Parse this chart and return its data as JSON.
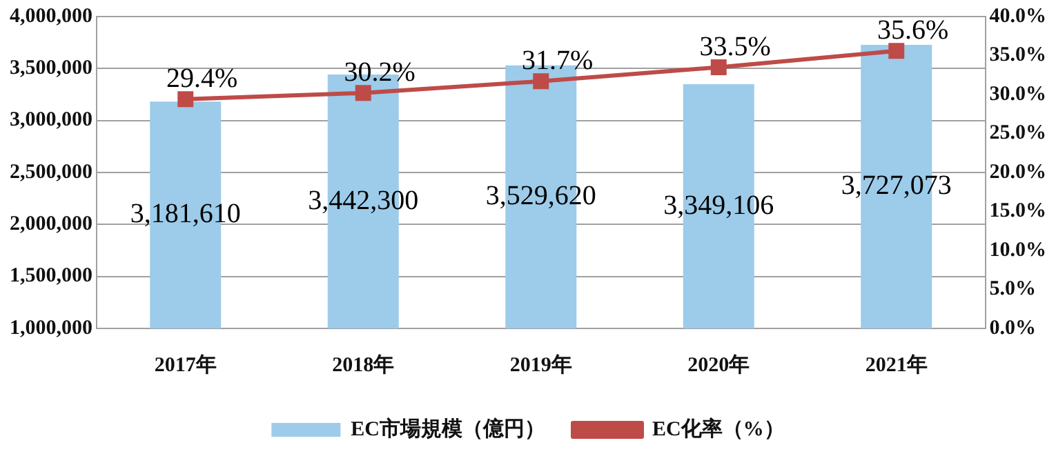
{
  "chart_data": {
    "type": "bar",
    "categories": [
      "2017年",
      "2018年",
      "2019年",
      "2020年",
      "2021年"
    ],
    "series": [
      {
        "name": "EC市場規模（億円）",
        "color": "#9dcbea",
        "values": [
          3181610,
          3442300,
          3529620,
          3349106,
          3727073
        ],
        "value_labels": [
          "3,181,610",
          "3,442,300",
          "3,529,620",
          "3,349,106",
          "3,727,073"
        ]
      },
      {
        "name": "EC化率（%）",
        "type": "line",
        "axis": "y2",
        "color": "#be4b48",
        "marker": "square",
        "values": [
          29.4,
          30.2,
          31.7,
          33.5,
          35.6
        ],
        "value_labels": [
          "29.4%",
          "30.2%",
          "31.7%",
          "33.5%",
          "35.6%"
        ]
      }
    ],
    "ylim": [
      1000000,
      4000000
    ],
    "yticks": [
      {
        "value": 1000000,
        "label": "1,000,000"
      },
      {
        "value": 1500000,
        "label": "1,500,000"
      },
      {
        "value": 2000000,
        "label": "2,000,000"
      },
      {
        "value": 2500000,
        "label": "2,500,000"
      },
      {
        "value": 3000000,
        "label": "3,000,000"
      },
      {
        "value": 3500000,
        "label": "3,500,000"
      },
      {
        "value": 4000000,
        "label": "4,000,000"
      }
    ],
    "y2lim": [
      0,
      40
    ],
    "y2ticks": [
      {
        "value": 0,
        "label": "0.0%"
      },
      {
        "value": 5,
        "label": "5.0%"
      },
      {
        "value": 10,
        "label": "10.0%"
      },
      {
        "value": 15,
        "label": "15.0%"
      },
      {
        "value": 20,
        "label": "20.0%"
      },
      {
        "value": 25,
        "label": "25.0%"
      },
      {
        "value": 30,
        "label": "30.0%"
      },
      {
        "value": 35,
        "label": "35.0%"
      },
      {
        "value": 40,
        "label": "40.0%"
      }
    ],
    "grid": "y",
    "legend": "bottom"
  }
}
